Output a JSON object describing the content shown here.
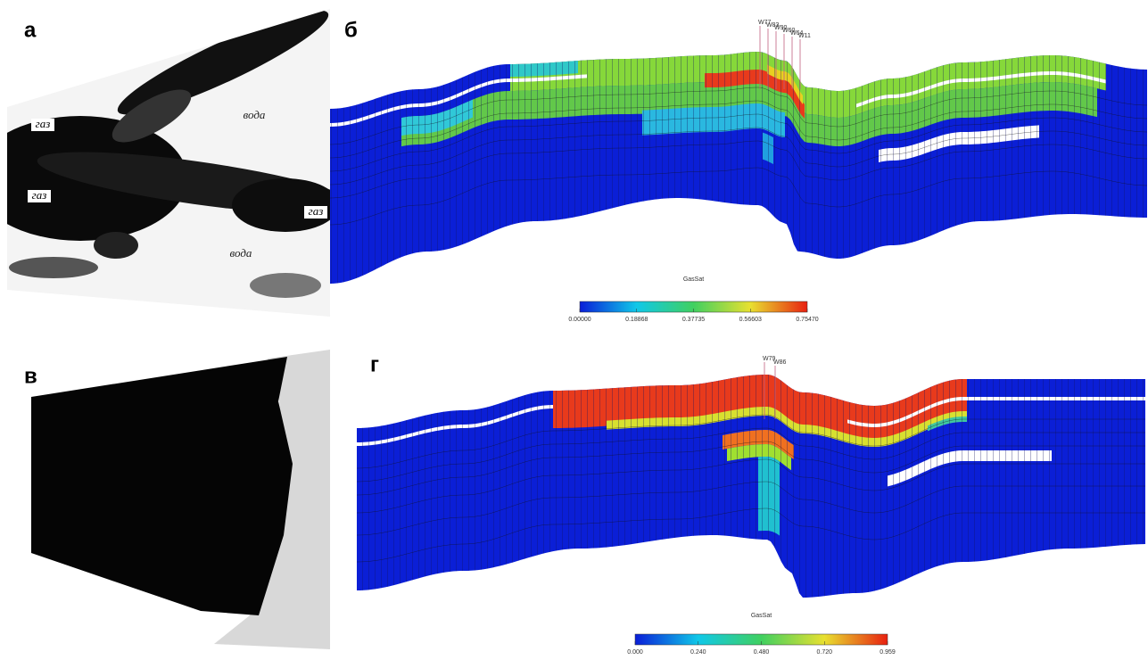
{
  "panels": [
    {
      "label": "а",
      "annotations": [
        "газ",
        "газ",
        "газ",
        "вода",
        "вода"
      ]
    },
    {
      "label": "б",
      "wells": [
        "W77",
        "W83",
        "W90",
        "W60",
        "W64",
        "W11"
      ],
      "colorbar": {
        "title": "GasSat",
        "ticks": [
          "0.00000",
          "0.18868",
          "0.37735",
          "0.56603",
          "0.75470"
        ]
      }
    },
    {
      "label": "в"
    },
    {
      "label": "г",
      "wells": [
        "W79",
        "W86"
      ],
      "colorbar": {
        "title": "GasSat",
        "ticks": [
          "0.000",
          "0.240",
          "0.480",
          "0.720",
          "0.959"
        ]
      }
    }
  ]
}
